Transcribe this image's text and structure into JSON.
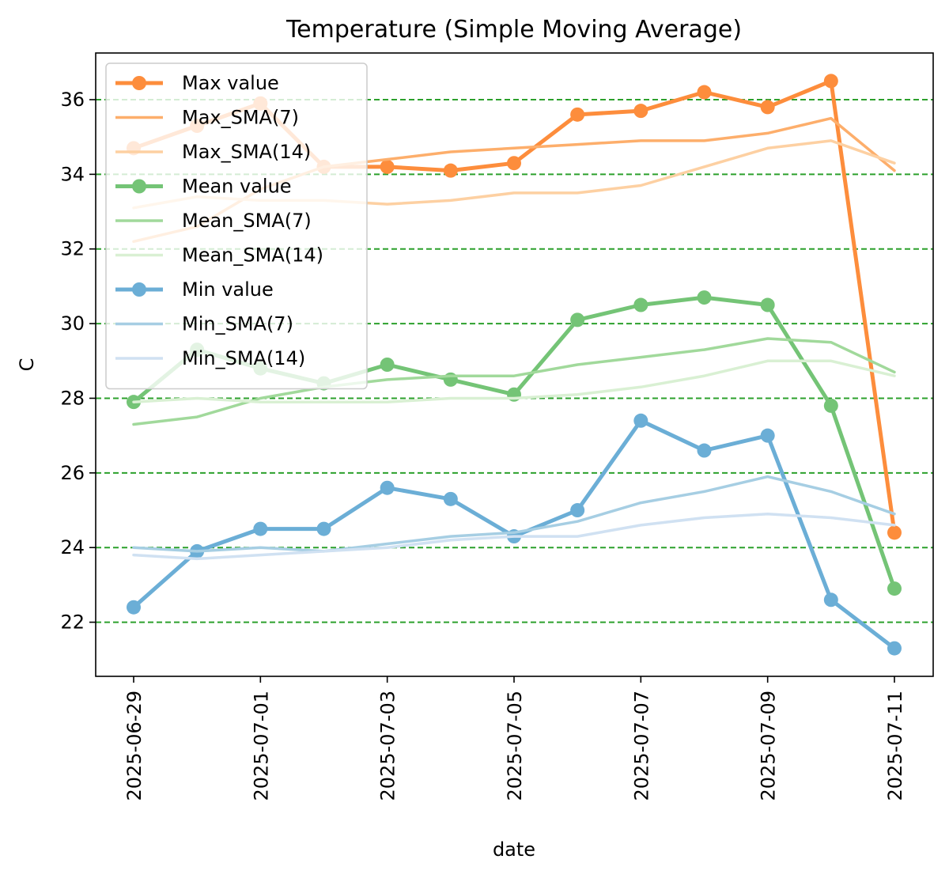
{
  "chart_data": {
    "type": "line",
    "title": "Temperature (Simple Moving Average)",
    "xlabel": "date",
    "ylabel": "C",
    "x": [
      "2025-06-29",
      "2025-06-30",
      "2025-07-01",
      "2025-07-02",
      "2025-07-03",
      "2025-07-04",
      "2025-07-05",
      "2025-07-06",
      "2025-07-07",
      "2025-07-08",
      "2025-07-09",
      "2025-07-10",
      "2025-07-11"
    ],
    "xticks": [
      "2025-06-29",
      "2025-07-01",
      "2025-07-03",
      "2025-07-05",
      "2025-07-07",
      "2025-07-09",
      "2025-07-11"
    ],
    "yticks": [
      22,
      24,
      26,
      28,
      30,
      32,
      34,
      36
    ],
    "ylim": [
      20.55,
      37.25
    ],
    "grid": "y-dashed",
    "grid_color": "#2ca02c",
    "legend_placement": "upper-left",
    "series": [
      {
        "name": "Max value",
        "color": "#fd8d3c",
        "width": 5,
        "markers": true,
        "values": [
          34.7,
          35.3,
          35.9,
          34.2,
          34.2,
          34.1,
          34.3,
          35.6,
          35.7,
          36.2,
          35.8,
          36.5,
          24.4
        ]
      },
      {
        "name": "Max_SMA(7)",
        "color": "#fdae6b",
        "width": 3.5,
        "markers": false,
        "values": [
          32.2,
          32.6,
          33.6,
          34.2,
          34.4,
          34.6,
          34.7,
          34.8,
          34.9,
          34.9,
          35.1,
          35.5,
          34.1
        ]
      },
      {
        "name": "Max_SMA(14)",
        "color": "#fdd0a2",
        "width": 3.5,
        "markers": false,
        "values": [
          33.1,
          33.4,
          33.3,
          33.3,
          33.2,
          33.3,
          33.5,
          33.5,
          33.7,
          34.2,
          34.7,
          34.9,
          34.3
        ]
      },
      {
        "name": "Mean value",
        "color": "#74c476",
        "width": 5,
        "markers": true,
        "values": [
          27.9,
          29.3,
          28.8,
          28.4,
          28.9,
          28.5,
          28.1,
          30.1,
          30.5,
          30.7,
          30.5,
          27.8,
          22.9
        ]
      },
      {
        "name": "Mean_SMA(7)",
        "color": "#a1d99b",
        "width": 3.5,
        "markers": false,
        "values": [
          27.3,
          27.5,
          28.0,
          28.3,
          28.5,
          28.6,
          28.6,
          28.9,
          29.1,
          29.3,
          29.6,
          29.5,
          28.7
        ]
      },
      {
        "name": "Mean_SMA(14)",
        "color": "#d9f0d3",
        "width": 3.5,
        "markers": false,
        "values": [
          27.9,
          28.0,
          27.9,
          27.9,
          27.9,
          28.0,
          28.0,
          28.1,
          28.3,
          28.6,
          29.0,
          29.0,
          28.6
        ]
      },
      {
        "name": "Min value",
        "color": "#6baed6",
        "width": 5,
        "markers": true,
        "values": [
          22.4,
          23.9,
          24.5,
          24.5,
          25.6,
          25.3,
          24.3,
          25.0,
          27.4,
          26.6,
          27.0,
          22.6,
          21.3
        ]
      },
      {
        "name": "Min_SMA(7)",
        "color": "#a6cee3",
        "width": 3.5,
        "markers": false,
        "values": [
          24.0,
          23.9,
          24.0,
          23.9,
          24.1,
          24.3,
          24.4,
          24.7,
          25.2,
          25.5,
          25.9,
          25.5,
          24.9
        ]
      },
      {
        "name": "Min_SMA(14)",
        "color": "#d0e1f2",
        "width": 3.5,
        "markers": false,
        "values": [
          23.8,
          23.7,
          23.8,
          23.9,
          24.0,
          24.2,
          24.3,
          24.3,
          24.6,
          24.8,
          24.9,
          24.8,
          24.6
        ]
      }
    ]
  }
}
